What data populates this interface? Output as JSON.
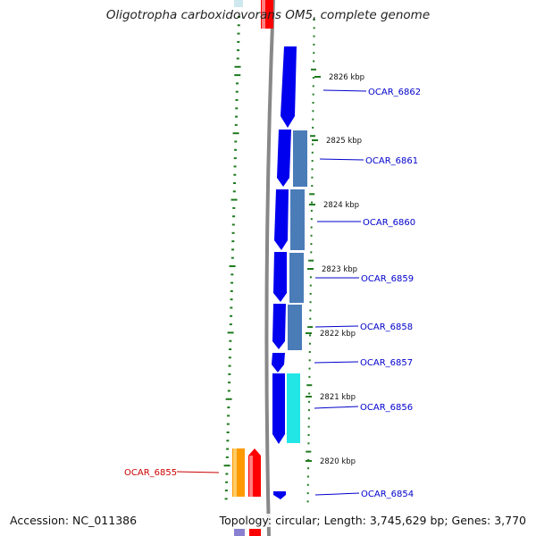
{
  "header": {
    "title": "Oligotropha carboxidovorans OM5, complete genome"
  },
  "footer": {
    "accession": "Accession: NC_011386",
    "stats": "Topology: circular; Length: 3,745,629 bp; Genes: 3,770"
  },
  "colors": {
    "backbone": "#888888",
    "forward_cds": "#0000ee",
    "operon_blue": "#4a7cb8",
    "cyan_gene": "#22e6e6",
    "orange_gene": "#ff9900",
    "red_gene": "#ff0000",
    "purple_gene": "#8a80d0",
    "gc_skew": "#1e7a1e",
    "label_blue": "#0000cc",
    "label_red": "#cc0000"
  },
  "scale_ticks": [
    {
      "label": "2826 kbp"
    },
    {
      "label": "2825 kbp"
    },
    {
      "label": "2824 kbp"
    },
    {
      "label": "2823 kbp"
    },
    {
      "label": "2822 kbp"
    },
    {
      "label": "2821 kbp"
    },
    {
      "label": "2820 kbp"
    }
  ],
  "gene_labels": [
    {
      "name": "OCAR_6862",
      "strand": "right"
    },
    {
      "name": "OCAR_6861",
      "strand": "right"
    },
    {
      "name": "OCAR_6860",
      "strand": "right"
    },
    {
      "name": "OCAR_6859",
      "strand": "right"
    },
    {
      "name": "OCAR_6858",
      "strand": "right"
    },
    {
      "name": "OCAR_6857",
      "strand": "right"
    },
    {
      "name": "OCAR_6856",
      "strand": "right"
    },
    {
      "name": "OCAR_6854",
      "strand": "right"
    },
    {
      "name": "OCAR_6855",
      "strand": "left"
    }
  ]
}
